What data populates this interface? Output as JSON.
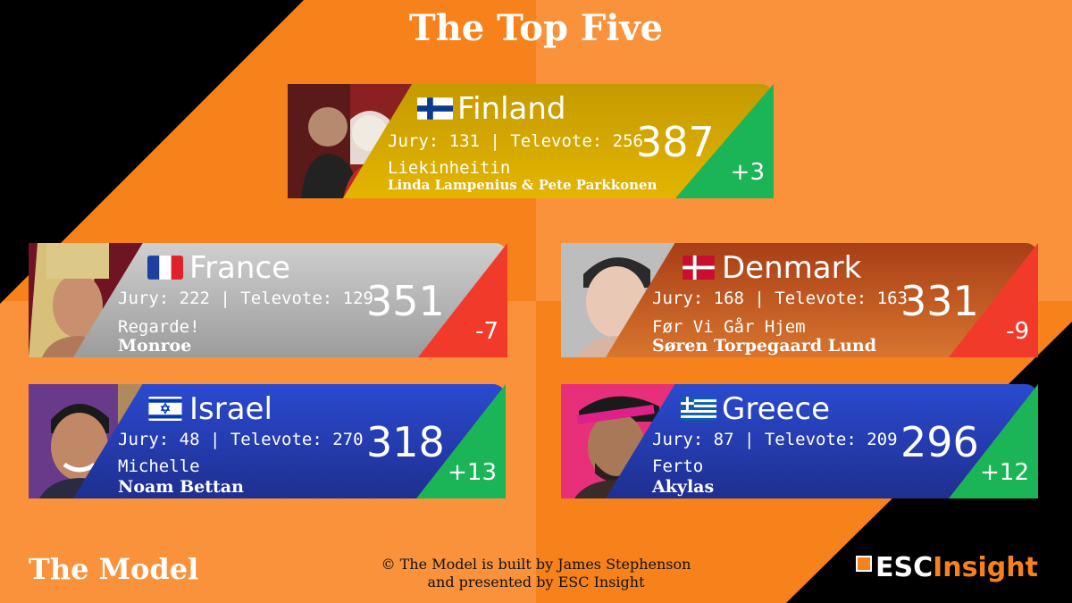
{
  "title": "The Top Five",
  "footer": {
    "left": "The Model",
    "credit_line1": "© The Model is built by James Stephenson",
    "credit_line2": "and presented by ESC Insight",
    "logo_part1": "ESC",
    "logo_part2": "Insight"
  },
  "colors": {
    "background": "#f7821b",
    "gold": "#d8a200",
    "silver": "#9e9e9e",
    "bronze": "#b64a1a",
    "blue": "#2b3ea8",
    "positive": "#1bb558",
    "negative": "#f23a2a"
  },
  "entries": [
    {
      "country": "Finland",
      "flag": "finland-flag",
      "votes": "Jury: 131 | Televote: 256",
      "total": "387",
      "song": "Liekinheitin",
      "artist": "Linda Lampenius & Pete Parkkonen",
      "change": "+3"
    },
    {
      "country": "France",
      "flag": "france-flag",
      "votes": "Jury: 222 | Televote: 129",
      "total": "351",
      "song": "Regarde!",
      "artist": "Monroe",
      "change": "-7"
    },
    {
      "country": "Denmark",
      "flag": "denmark-flag",
      "votes": "Jury: 168 | Televote: 163",
      "total": "331",
      "song": "Før Vi Går Hjem",
      "artist": "Søren Torpegaard Lund",
      "change": "-9"
    },
    {
      "country": "Israel",
      "flag": "israel-flag",
      "votes": "Jury: 48 | Televote: 270",
      "total": "318",
      "song": "Michelle",
      "artist": "Noam Bettan",
      "change": "+13"
    },
    {
      "country": "Greece",
      "flag": "greece-flag",
      "votes": "Jury: 87 | Televote: 209",
      "total": "296",
      "song": "Ferto",
      "artist": "Akylas",
      "change": "+12"
    }
  ]
}
